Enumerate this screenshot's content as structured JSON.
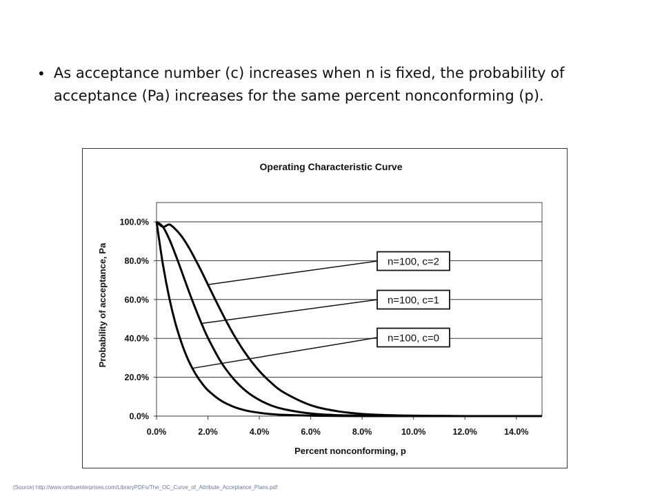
{
  "slide": {
    "bullet_symbol": "•",
    "bullet_text": "As acceptance number (c) increases when n is fixed, the probability of acceptance (Pa) increases for the same percent nonconforming (p).",
    "source_text": "(Source) http://www.ombuenterprises.com/LibraryPDFs/The_OC_Curve_of_Attribute_Acceptance_Plans.pdf"
  },
  "chart_data": {
    "type": "line",
    "title": "Operating Characteristic Curve",
    "xlabel": "Percent nonconforming, p",
    "ylabel": "Probability of acceptance, Pa",
    "xlim": [
      0,
      15
    ],
    "ylim": [
      0,
      100
    ],
    "x_ticks": [
      0,
      2,
      4,
      6,
      8,
      10,
      12,
      14
    ],
    "x_tick_labels": [
      "0.0%",
      "2.0%",
      "4.0%",
      "6.0%",
      "8.0%",
      "10.0%",
      "12.0%",
      "14.0%"
    ],
    "y_ticks": [
      0,
      20,
      40,
      60,
      80,
      100
    ],
    "y_tick_labels": [
      "0.0%",
      "20.0%",
      "40.0%",
      "60.0%",
      "80.0%",
      "100.0%"
    ],
    "grid": "horizontal",
    "x": [
      0,
      0.25,
      0.5,
      0.75,
      1,
      1.25,
      1.5,
      1.75,
      2,
      2.5,
      3,
      3.5,
      4,
      4.5,
      5,
      6,
      7,
      8,
      9,
      10,
      12,
      15
    ],
    "series": [
      {
        "name": "n=100, c=2",
        "values": [
          100,
          97.4,
          98.6,
          96.0,
          92.1,
          86.9,
          80.9,
          74.5,
          67.7,
          54.3,
          42.0,
          31.6,
          23.2,
          16.7,
          11.8,
          5.6,
          2.6,
          1.1,
          0.5,
          0.2,
          0.0,
          0.0
        ]
      },
      {
        "name": "n=100, c=1",
        "values": [
          100,
          97.4,
          91.0,
          82.7,
          73.6,
          64.5,
          55.8,
          47.7,
          40.3,
          28.0,
          19.1,
          12.7,
          8.3,
          5.3,
          3.4,
          1.3,
          0.5,
          0.2,
          0.1,
          0.0,
          0.0,
          0.0
        ]
      },
      {
        "name": "n=100, c=0",
        "values": [
          100,
          77.9,
          60.6,
          47.1,
          36.6,
          28.4,
          22.1,
          17.2,
          13.3,
          8.0,
          4.8,
          2.8,
          1.7,
          1.0,
          0.6,
          0.2,
          0.1,
          0.0,
          0.0,
          0.0,
          0.0,
          0.0
        ]
      }
    ],
    "annotations": [
      {
        "text": "n=100, c=2",
        "series": 0,
        "anchor_x": 2.0
      },
      {
        "text": "n=100, c=1",
        "series": 1,
        "anchor_x": 1.75
      },
      {
        "text": "n=100, c=0",
        "series": 2,
        "anchor_x": 1.4
      }
    ],
    "line_color": "#000000"
  }
}
